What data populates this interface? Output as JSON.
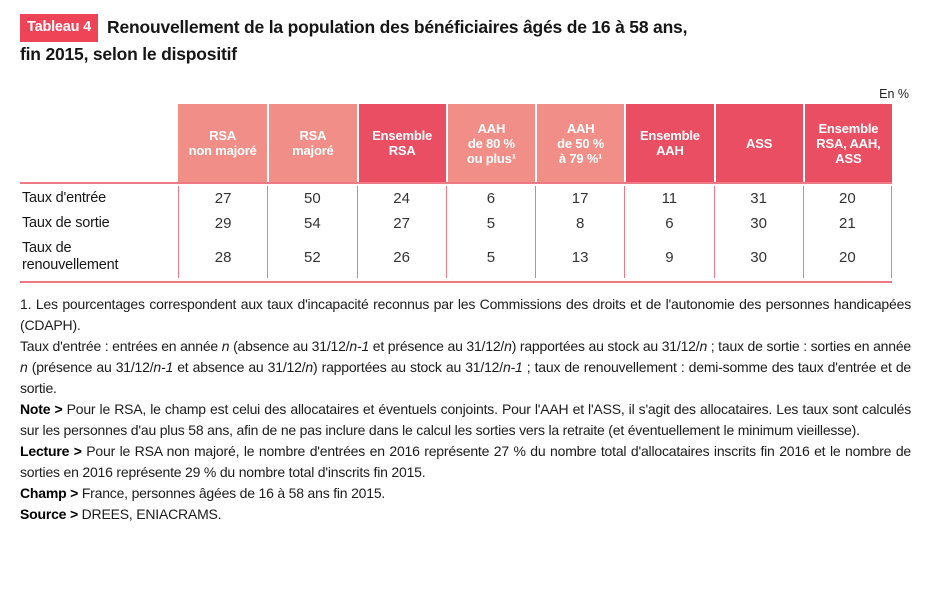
{
  "badge": "Tableau 4",
  "title": "Renouvellement de la population des bénéficiaires âgés de 16 à 58 ans,\nfin 2015, selon le dispositif",
  "unit": "En %",
  "table": {
    "columns": [
      {
        "label": "RSA\nnon majoré",
        "tone": "light"
      },
      {
        "label": "RSA\nmajoré",
        "tone": "light"
      },
      {
        "label": "Ensemble\nRSA",
        "tone": "dark"
      },
      {
        "label": "AAH\nde 80 %\nou plus¹",
        "tone": "light"
      },
      {
        "label": "AAH\nde 50 %\nà 79 %¹",
        "tone": "light"
      },
      {
        "label": "Ensemble\nAAH",
        "tone": "dark"
      },
      {
        "label": "ASS",
        "tone": "dark"
      },
      {
        "label": "Ensemble\nRSA, AAH,\nASS",
        "tone": "dark"
      }
    ],
    "rows": [
      {
        "label": "Taux d'entrée",
        "values": [
          27,
          50,
          24,
          6,
          17,
          11,
          31,
          20
        ]
      },
      {
        "label": "Taux de sortie",
        "values": [
          29,
          54,
          27,
          5,
          8,
          6,
          30,
          21
        ]
      },
      {
        "label": "Taux de\nrenouvellement",
        "values": [
          28,
          52,
          26,
          5,
          13,
          9,
          30,
          20
        ]
      }
    ]
  },
  "notes": [
    [
      {
        "t": "1. Les pourcentages correspondent aux taux d'incapacité reconnus par les Commissions des droits et de l'autonomie des personnes handicapées (CDAPH)."
      }
    ],
    [
      {
        "t": "Taux d'entrée : entrées en année "
      },
      {
        "t": "n",
        "i": 1
      },
      {
        "t": " (absence au 31/12/"
      },
      {
        "t": "n-1",
        "i": 1
      },
      {
        "t": " et présence au 31/12/"
      },
      {
        "t": "n",
        "i": 1
      },
      {
        "t": ") rapportées au stock au 31/12/"
      },
      {
        "t": "n",
        "i": 1
      },
      {
        "t": " ; taux de sortie : sorties en année "
      },
      {
        "t": "n",
        "i": 1
      },
      {
        "t": " (présence au 31/12/"
      },
      {
        "t": "n-1",
        "i": 1
      },
      {
        "t": " et absence au 31/12/"
      },
      {
        "t": "n",
        "i": 1
      },
      {
        "t": ") rapportées au stock au 31/12/"
      },
      {
        "t": "n-1",
        "i": 1
      },
      {
        "t": " ; taux de renouvellement : demi-somme des taux d'entrée et de sortie."
      }
    ],
    [
      {
        "t": "Note > ",
        "b": 1
      },
      {
        "t": "Pour le RSA, le champ est celui des allocataires et éventuels conjoints. Pour l'AAH et l'ASS, il s'agit des allocataires. Les taux sont calculés sur les personnes d'au plus 58 ans, afin de ne pas inclure dans le calcul les sorties vers la retraite (et éventuellement le minimum vieillesse)."
      }
    ],
    [
      {
        "t": "Lecture > ",
        "b": 1
      },
      {
        "t": "Pour le RSA non majoré, le nombre d'entrées en 2016 représente 27 % du nombre total d'allocataires inscrits fin 2016 et le nombre de sorties en 2016 représente 29 % du nombre total d'inscrits fin 2015."
      }
    ],
    [
      {
        "t": "Champ > ",
        "b": 1
      },
      {
        "t": "France, personnes âgées de 16 à 58 ans fin 2015."
      }
    ],
    [
      {
        "t": "Source > ",
        "b": 1
      },
      {
        "t": "DREES, ENIACRAMS."
      }
    ]
  ]
}
